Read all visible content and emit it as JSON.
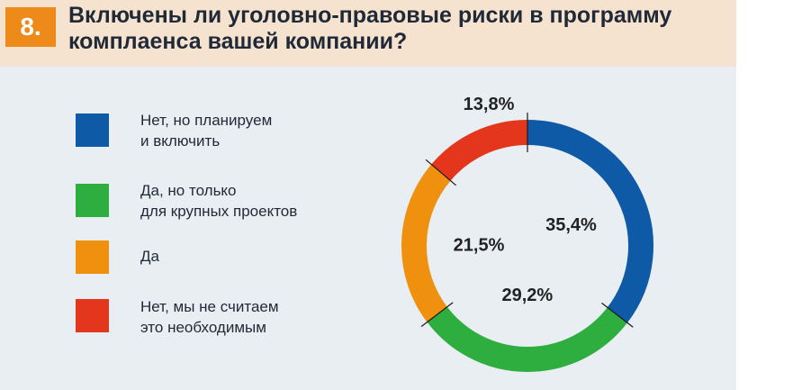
{
  "question_number": "8.",
  "title": "Включены ли уголовно-правовые риски в программу комплаенса вашей компании?",
  "colors": {
    "blue": "#0e5aa6",
    "green": "#2eae3f",
    "orange": "#f0900f",
    "red": "#e4361d",
    "accent": "#ee8a1a"
  },
  "legend": [
    {
      "label": "Нет, но планируем\nи включить",
      "color": "#0e5aa6"
    },
    {
      "label": "Да, но только\nдля крупных проектов",
      "color": "#2eae3f"
    },
    {
      "label": "Да",
      "color": "#f0900f"
    },
    {
      "label": "Нет, мы не считаем\nэто необходимым",
      "color": "#e4361d"
    }
  ],
  "chart_data": {
    "type": "donut",
    "title": "Включены ли уголовно-правовые риски в программу комплаенса вашей компании?",
    "categories": [
      "Нет, но планируем и включить",
      "Да, но только для крупных проектов",
      "Да",
      "Нет, мы не считаем это необходимым"
    ],
    "values": [
      35.4,
      29.2,
      21.5,
      13.8
    ],
    "labels": [
      "35,4%",
      "29,2%",
      "21,5%",
      "13,8%"
    ],
    "colors": [
      "#0e5aa6",
      "#2eae3f",
      "#f0900f",
      "#e4361d"
    ],
    "start": "top",
    "direction": "clockwise"
  }
}
